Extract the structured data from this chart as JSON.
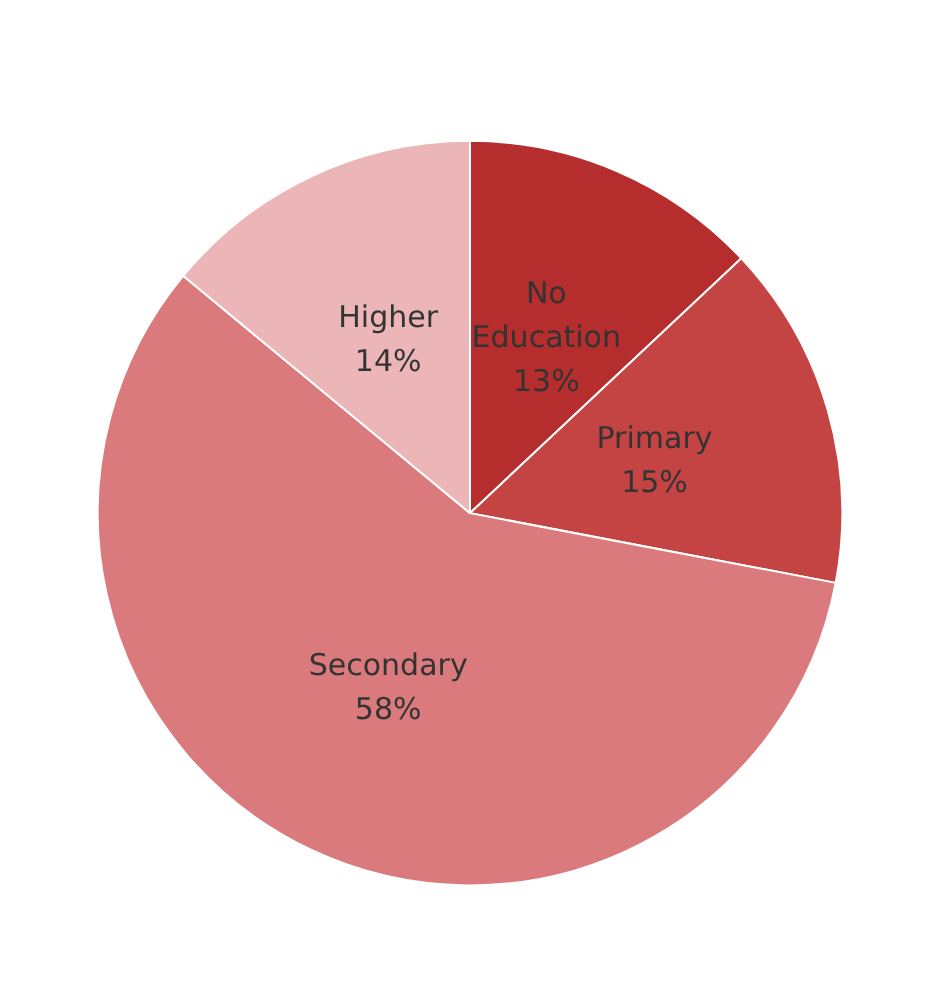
{
  "chart_data": {
    "type": "pie",
    "categories": [
      "No Education",
      "Primary",
      "Secondary",
      "Higher"
    ],
    "values": [
      13,
      15,
      58,
      14
    ],
    "value_labels": [
      "13%",
      "15%",
      "58%",
      "14%"
    ],
    "colors": [
      "#b52d2d",
      "#c44444",
      "#da7a7c",
      "#ecb6b8"
    ],
    "legend": false
  }
}
